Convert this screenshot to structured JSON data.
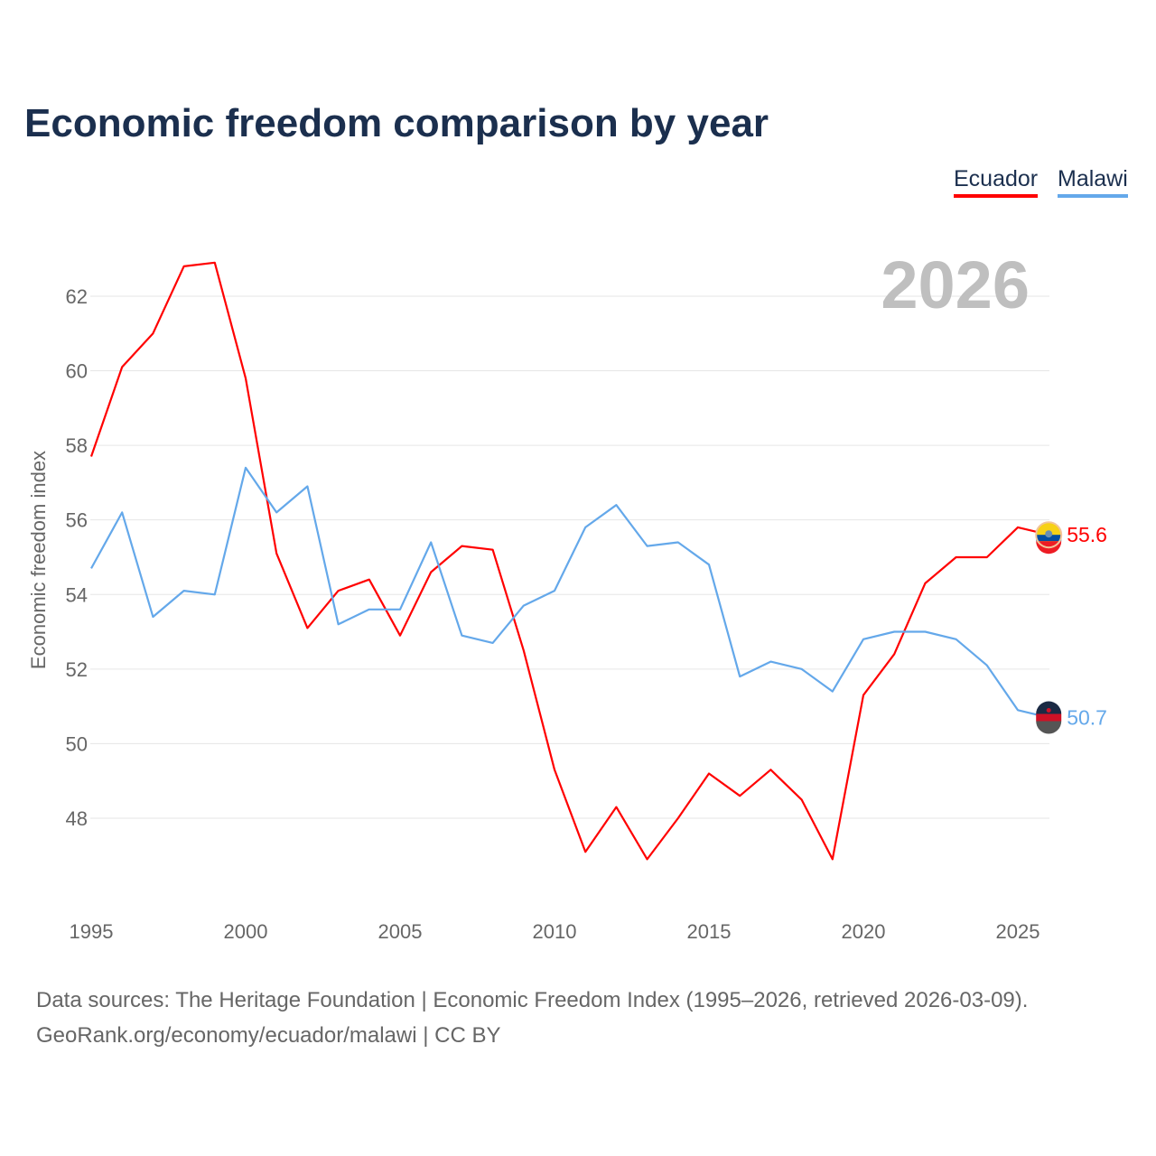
{
  "chart_data": {
    "type": "line",
    "title": "Economic freedom comparison by year",
    "xlabel": "",
    "ylabel": "Economic freedom index",
    "x": [
      1995,
      1996,
      1997,
      1998,
      1999,
      2000,
      2001,
      2002,
      2003,
      2004,
      2005,
      2006,
      2007,
      2008,
      2009,
      2010,
      2011,
      2012,
      2013,
      2014,
      2015,
      2016,
      2017,
      2018,
      2019,
      2020,
      2021,
      2022,
      2023,
      2024,
      2025,
      2026
    ],
    "xticks": [
      "1995",
      "2000",
      "2005",
      "2010",
      "2015",
      "2020",
      "2025"
    ],
    "yticks": [
      "48",
      "50",
      "52",
      "54",
      "56",
      "58",
      "60",
      "62"
    ],
    "ylim": [
      45.6,
      63.6
    ],
    "grid": true,
    "year_label": "2026",
    "legend_position": "top-right",
    "series": [
      {
        "name": "Ecuador",
        "color": "#ff0000",
        "end_label": "55.6",
        "values": [
          57.7,
          60.1,
          61.0,
          62.8,
          62.9,
          59.8,
          55.1,
          53.1,
          54.1,
          54.4,
          52.9,
          54.6,
          55.3,
          55.2,
          52.5,
          49.3,
          47.1,
          48.3,
          46.9,
          48.0,
          49.2,
          48.6,
          49.3,
          48.5,
          46.9,
          51.3,
          52.4,
          54.3,
          55.0,
          55.0,
          55.8,
          55.6
        ]
      },
      {
        "name": "Malawi",
        "color": "#64a8ea",
        "end_label": "50.7",
        "values": [
          54.7,
          56.2,
          53.4,
          54.1,
          54.0,
          57.4,
          56.2,
          56.9,
          53.2,
          53.6,
          53.6,
          55.4,
          52.9,
          52.7,
          53.7,
          54.1,
          55.8,
          56.4,
          55.3,
          55.4,
          54.8,
          51.8,
          52.2,
          52.0,
          51.4,
          52.8,
          53.0,
          53.0,
          52.8,
          52.1,
          50.9,
          50.7
        ]
      }
    ]
  },
  "footer": {
    "line1": "Data sources: The Heritage Foundation | Economic Freedom Index (1995–2026, retrieved 2026-03-09).",
    "line2": "GeoRank.org/economy/ecuador/malawi | CC BY"
  }
}
